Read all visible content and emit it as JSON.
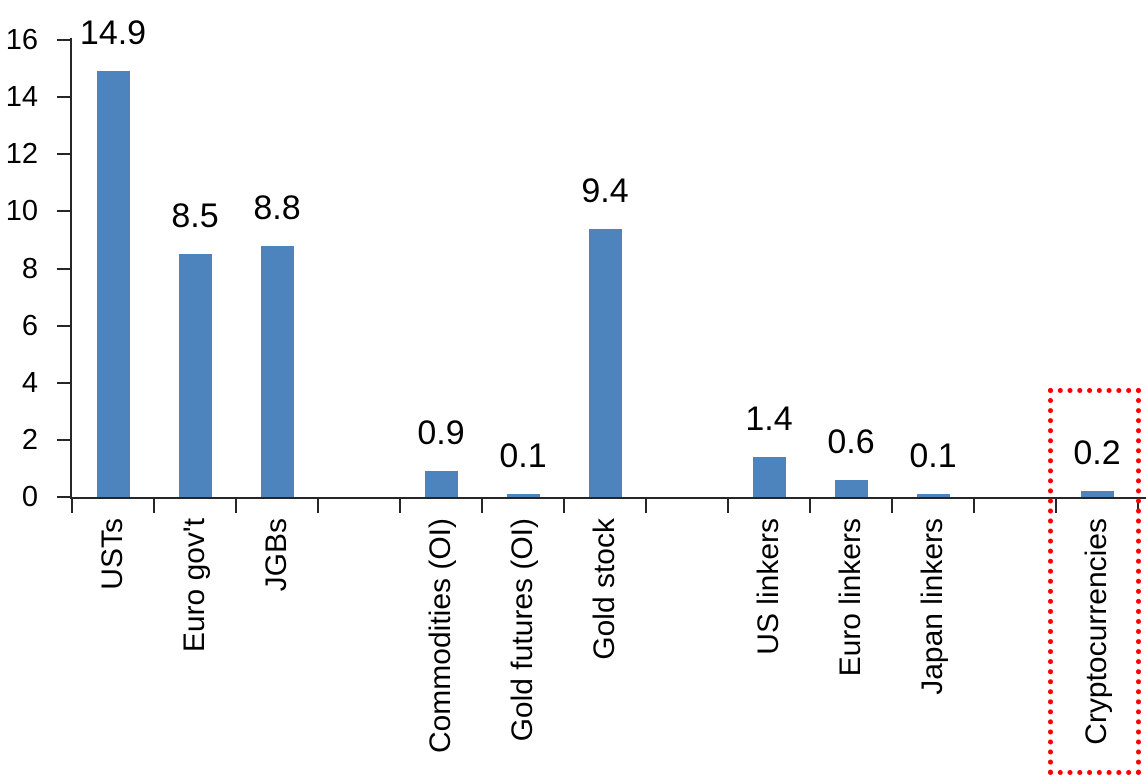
{
  "chart_data": {
    "type": "bar",
    "title": "",
    "xlabel": "",
    "ylabel": "",
    "categories": [
      "USTs",
      "Euro gov't",
      "JGBs",
      "Commodities (OI)",
      "Gold futures (OI)",
      "Gold stock",
      "US linkers",
      "Euro linkers",
      "Japan linkers",
      "Cryptocurrencies"
    ],
    "values": [
      14.9,
      8.5,
      8.8,
      0.9,
      0.1,
      9.4,
      1.4,
      0.6,
      0.1,
      0.2
    ],
    "data_labels": [
      "14.9",
      "8.5",
      "8.8",
      "0.9",
      "0.1",
      "9.4",
      "1.4",
      "0.6",
      "0.1",
      "0.2"
    ],
    "bars": [
      {
        "label": "USTs",
        "value": 14.9,
        "display": "14.9",
        "slot": 0
      },
      {
        "label": "Euro gov't",
        "value": 8.5,
        "display": "8.5",
        "slot": 1
      },
      {
        "label": "JGBs",
        "value": 8.8,
        "display": "8.8",
        "slot": 2
      },
      {
        "label": "Commodities (OI)",
        "value": 0.9,
        "display": "0.9",
        "slot": 4
      },
      {
        "label": "Gold futures (OI)",
        "value": 0.1,
        "display": "0.1",
        "slot": 5
      },
      {
        "label": "Gold stock",
        "value": 9.4,
        "display": "9.4",
        "slot": 6
      },
      {
        "label": "US linkers",
        "value": 1.4,
        "display": "1.4",
        "slot": 8
      },
      {
        "label": "Euro linkers",
        "value": 0.6,
        "display": "0.6",
        "slot": 9
      },
      {
        "label": "Japan linkers",
        "value": 0.1,
        "display": "0.1",
        "slot": 10
      },
      {
        "label": "Cryptocurrencies",
        "value": 0.2,
        "display": "0.2",
        "slot": 12
      }
    ],
    "slot_count": 13,
    "ylim": [
      0,
      16
    ],
    "ytick_step": 2,
    "ytick_labels": [
      "0",
      "2",
      "4",
      "6",
      "8",
      "10",
      "12",
      "14",
      "16"
    ],
    "grid": false,
    "legend": "none",
    "bar_color": "#4E84BD",
    "axis_color": "#262626",
    "text_color": "#000000",
    "annotation": {
      "type": "dotted-box",
      "target": "Cryptocurrencies",
      "target_slot": 12,
      "color": "#FF0000",
      "description": "Red dotted rectangle highlighting the Cryptocurrencies bar and its category label"
    }
  }
}
